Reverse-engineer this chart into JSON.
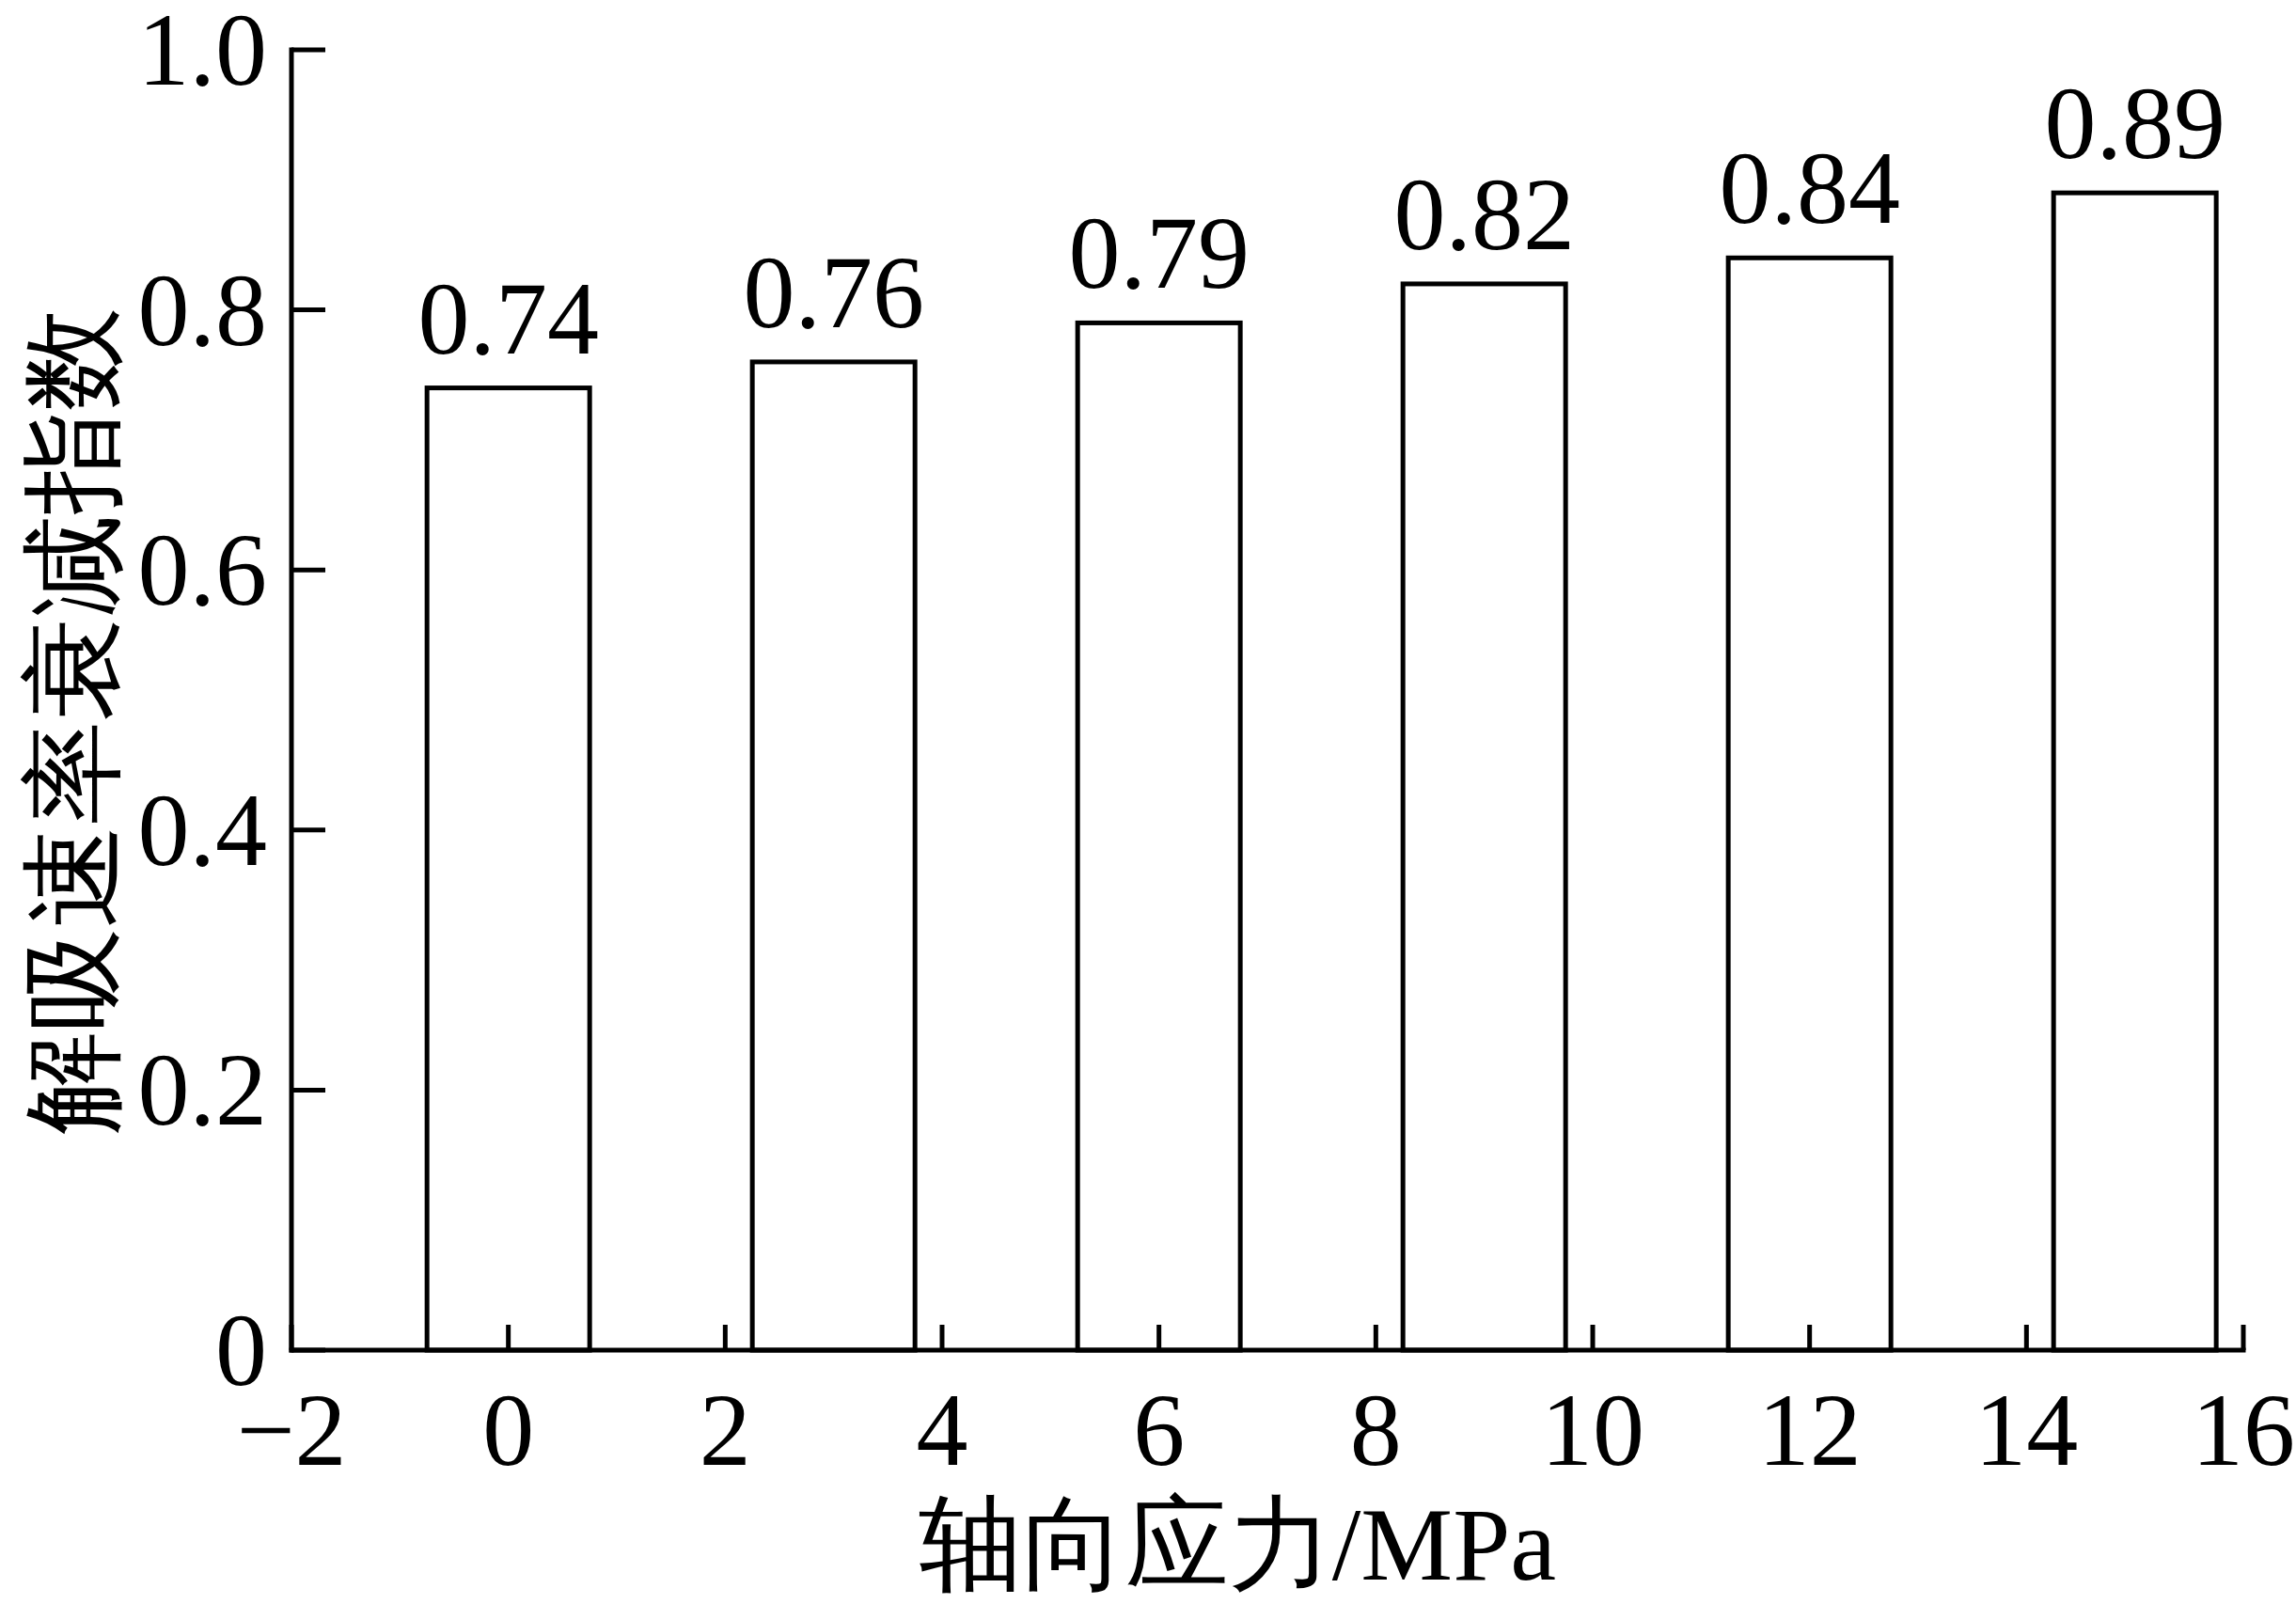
{
  "chart_data": {
    "type": "bar",
    "xlabel": "轴向应力/MPa",
    "ylabel": "解吸速率衰减指数",
    "x": [
      0,
      3,
      6,
      9,
      12,
      15
    ],
    "values": [
      0.74,
      0.76,
      0.79,
      0.82,
      0.84,
      0.89
    ],
    "color": "#ffffff",
    "data_labels": true,
    "xlim": [
      -2,
      16
    ],
    "ylim": [
      0,
      1
    ],
    "xticks": [
      {
        "value": -2,
        "label": "−2"
      },
      0,
      2,
      4,
      6,
      8,
      10,
      12,
      14,
      16
    ],
    "yticks": [
      0,
      0.2,
      0.4,
      0.6,
      0.8,
      {
        "value": 1,
        "label": "1.0"
      }
    ]
  }
}
